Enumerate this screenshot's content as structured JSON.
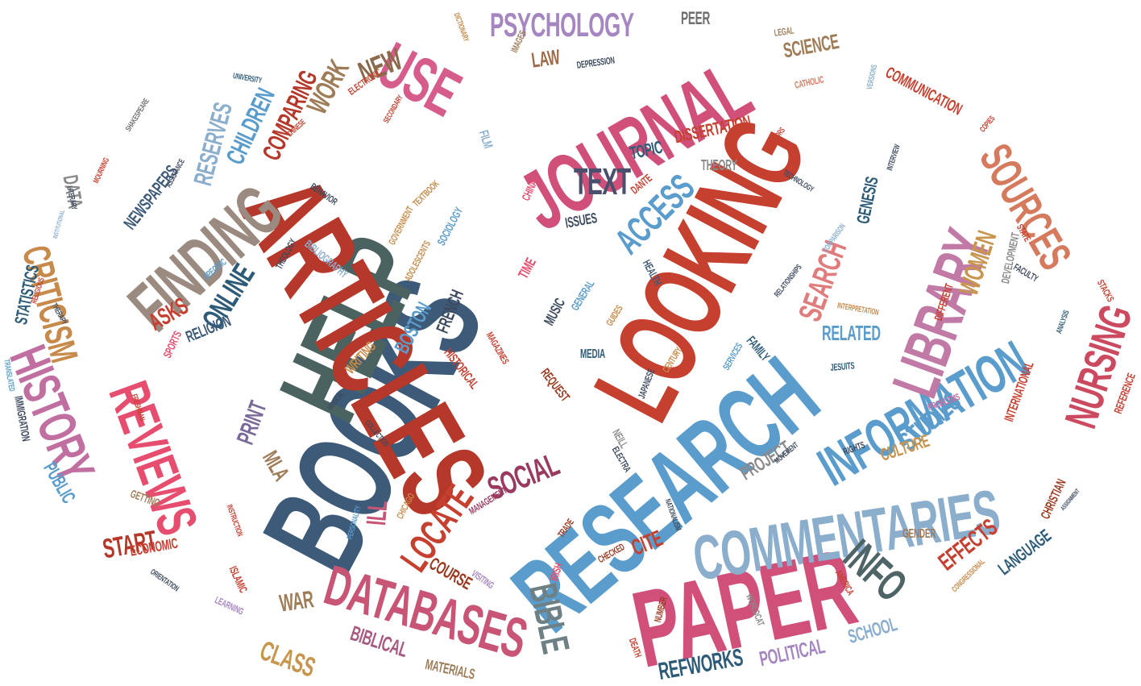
{
  "words": [
    {
      "text": "BOOKS",
      "color": "#3d5a78"
    },
    {
      "text": "HELP",
      "color": "#4a6260"
    },
    {
      "text": "ARTICLES",
      "color": "#b5382a"
    },
    {
      "text": "LOOKING",
      "color": "#c6402f"
    },
    {
      "text": "RESEARCH",
      "color": "#5a9ccc"
    },
    {
      "text": "JOURNAL",
      "color": "#d0507a"
    },
    {
      "text": "PAPER",
      "color": "#d0507a"
    },
    {
      "text": "COMMENTARIES",
      "color": "#8caecd"
    },
    {
      "text": "INFORMATION",
      "color": "#5a9ccc"
    },
    {
      "text": "LIBRARY",
      "color": "#c07aa5"
    },
    {
      "text": "FINDING",
      "color": "#9a8a80"
    },
    {
      "text": "DATABASES",
      "color": "#c95576"
    },
    {
      "text": "REVIEWS",
      "color": "#e64d6e"
    },
    {
      "text": "HISTORY",
      "color": "#c06fa0"
    },
    {
      "text": "USE",
      "color": "#d65c8c"
    },
    {
      "text": "SOURCES",
      "color": "#d67a5e"
    },
    {
      "text": "NURSING",
      "color": "#cc4a60"
    },
    {
      "text": "CRITICISM",
      "color": "#c78a4a"
    },
    {
      "text": "BIBLE",
      "color": "#6e8084"
    },
    {
      "text": "INFO",
      "color": "#4f6466"
    },
    {
      "text": "PSYCHOLOGY",
      "color": "#a586c0"
    },
    {
      "text": "TEXT",
      "color": "#4a4f6e"
    },
    {
      "text": "ACCESS",
      "color": "#5a9ccc"
    },
    {
      "text": "LOCATE",
      "color": "#c64030"
    },
    {
      "text": "SOCIAL",
      "color": "#9a3a60"
    },
    {
      "text": "SEARCH",
      "color": "#e07c7c"
    },
    {
      "text": "WOMEN",
      "color": "#c7954e"
    },
    {
      "text": "STUDIES",
      "color": "#5a9ccc"
    },
    {
      "text": "ONLINE",
      "color": "#2d5b78"
    },
    {
      "text": "NEW",
      "color": "#8a6a4a"
    },
    {
      "text": "WORK",
      "color": "#9e7c58"
    },
    {
      "text": "CHILDREN",
      "color": "#5a9ccc"
    },
    {
      "text": "RESERVES",
      "color": "#8caecd"
    },
    {
      "text": "COMPARING",
      "color": "#b5382a"
    },
    {
      "text": "NEWSPAPERS",
      "color": "#3d5a78"
    },
    {
      "text": "DATA",
      "color": "#8a8a8a"
    },
    {
      "text": "STATISTICS",
      "color": "#2d5b78"
    },
    {
      "text": "ASKS",
      "color": "#c64030"
    },
    {
      "text": "PRINT",
      "color": "#7a6a9a"
    },
    {
      "text": "MLA",
      "color": "#9e7c58"
    },
    {
      "text": "ILL",
      "color": "#c95576"
    },
    {
      "text": "START",
      "color": "#b5382a"
    },
    {
      "text": "WAR",
      "color": "#9e7c58"
    },
    {
      "text": "CLASS",
      "color": "#c7954e"
    },
    {
      "text": "BIBLICAL",
      "color": "#a85a80"
    },
    {
      "text": "MATERIALS",
      "color": "#9e7c58"
    },
    {
      "text": "REFWORKS",
      "color": "#2d5b78"
    },
    {
      "text": "POLITICAL",
      "color": "#a586c0"
    },
    {
      "text": "SCHOOL",
      "color": "#8caecd"
    },
    {
      "text": "EFFECTS",
      "color": "#c64030"
    },
    {
      "text": "LANGUAGE",
      "color": "#2d5b78"
    },
    {
      "text": "CULTURE",
      "color": "#c7954e"
    },
    {
      "text": "PROJECT",
      "color": "#8a8a8a"
    },
    {
      "text": "CITE",
      "color": "#c64030"
    },
    {
      "text": "COURSE",
      "color": "#9a3a20"
    },
    {
      "text": "RELATED",
      "color": "#5a9ccc"
    },
    {
      "text": "SCIENCE",
      "color": "#9e7c58"
    },
    {
      "text": "LAW",
      "color": "#9e6a4a"
    },
    {
      "text": "PEER",
      "color": "#6e6e6e"
    },
    {
      "text": "COMMUNICATION",
      "color": "#c64030"
    },
    {
      "text": "DISSERTATION",
      "color": "#c64030"
    },
    {
      "text": "TOPIC",
      "color": "#2d5b78"
    },
    {
      "text": "PUBLIC",
      "color": "#5a9ccc"
    },
    {
      "text": "IMMIGRATION",
      "color": "#3d4a5e"
    },
    {
      "text": "ECONOMIC",
      "color": "#c64030"
    },
    {
      "text": "RELIGION",
      "color": "#3d5a78"
    },
    {
      "text": "BOSTON",
      "color": "#5a9ccc"
    },
    {
      "text": "FRENCH",
      "color": "#3d4a5e"
    },
    {
      "text": "HISTORICAL",
      "color": "#c64030"
    },
    {
      "text": "REQUEST",
      "color": "#9a3a20"
    },
    {
      "text": "WRITING",
      "color": "#c78a4a"
    },
    {
      "text": "MEDIA",
      "color": "#2d5b78"
    },
    {
      "text": "MUSIC",
      "color": "#3d4a5e"
    },
    {
      "text": "GENERAL",
      "color": "#5a9ccc"
    },
    {
      "text": "HEALTH",
      "color": "#3d5a78"
    },
    {
      "text": "ISSUES",
      "color": "#3d4a5e"
    },
    {
      "text": "GENESIS",
      "color": "#2d5b78"
    },
    {
      "text": "THEORY",
      "color": "#8a8a8a"
    },
    {
      "text": "FILM",
      "color": "#8caecd"
    },
    {
      "text": "IMAGES",
      "color": "#9e7c58"
    },
    {
      "text": "DEPRESSION",
      "color": "#3d4a5e"
    },
    {
      "text": "LEGAL",
      "color": "#9e7c58"
    },
    {
      "text": "CATHOLIC",
      "color": "#d67a5e"
    },
    {
      "text": "VERSIONS",
      "color": "#8caecd"
    },
    {
      "text": "COPIES",
      "color": "#c64030"
    },
    {
      "text": "DICTIONARY",
      "color": "#c78a4a"
    },
    {
      "text": "ELECTRONIC",
      "color": "#c64030"
    },
    {
      "text": "UNIVERSITY",
      "color": "#2d5b78"
    },
    {
      "text": "SHAKESPEARE",
      "color": "#6e6e6e"
    },
    {
      "text": "MOURNING",
      "color": "#c64030"
    },
    {
      "text": "ASSISTANCE",
      "color": "#3d4a5e"
    },
    {
      "text": "CHINESE",
      "color": "#c64030"
    },
    {
      "text": "SECONDARY",
      "color": "#c64030"
    },
    {
      "text": "BEHAVIOR",
      "color": "#3d4a5e"
    },
    {
      "text": "GOVERNMENT",
      "color": "#c78a4a"
    },
    {
      "text": "TEXTBOOK",
      "color": "#c78a4a"
    },
    {
      "text": "ADOLESCENTS",
      "color": "#c78a4a"
    },
    {
      "text": "SOCIOLOGY",
      "color": "#5a9ccc"
    },
    {
      "text": "CHINA",
      "color": "#e64d6e"
    },
    {
      "text": "DANTE",
      "color": "#c64030"
    },
    {
      "text": "TIME",
      "color": "#e64d6e"
    },
    {
      "text": "MAGAZINES",
      "color": "#c64030"
    },
    {
      "text": "GUIDES",
      "color": "#c78a4a"
    },
    {
      "text": "JAPANESE",
      "color": "#3d4a5e"
    },
    {
      "text": "CENTURY",
      "color": "#c78a4a"
    },
    {
      "text": "FAMILY",
      "color": "#2d5b78"
    },
    {
      "text": "SERVICES",
      "color": "#5a9ccc"
    },
    {
      "text": "JESUITS",
      "color": "#2d5b78"
    },
    {
      "text": "INTERNATIONAL",
      "color": "#c64030"
    },
    {
      "text": "ANALYSIS",
      "color": "#2d5b78"
    },
    {
      "text": "REFERENCE",
      "color": "#c64030"
    },
    {
      "text": "STACKS",
      "color": "#c64030"
    },
    {
      "text": "FACULTY",
      "color": "#3d4a5e"
    },
    {
      "text": "STATE",
      "color": "#c64030"
    },
    {
      "text": "DEVELOPMENT",
      "color": "#8a8a8a"
    },
    {
      "text": "DIFFERENT",
      "color": "#c64030"
    },
    {
      "text": "INTERPRETATION",
      "color": "#c78a4a"
    },
    {
      "text": "RELATIONSHIPS",
      "color": "#3d4a5e"
    },
    {
      "text": "COMPARISON",
      "color": "#8caecd"
    },
    {
      "text": "TECHNOLOGY",
      "color": "#3d4a5e"
    },
    {
      "text": "INTERVIEW",
      "color": "#3d4a5e"
    },
    {
      "text": "AUTHORS",
      "color": "#c64030"
    },
    {
      "text": "THEOLOGY",
      "color": "#3d4a5e"
    },
    {
      "text": "BIBLIOGRAPHY",
      "color": "#8caecd"
    },
    {
      "text": "SPECIFIC",
      "color": "#5a9ccc"
    },
    {
      "text": "RELIGIOUS",
      "color": "#c64030"
    },
    {
      "text": "THERAPY",
      "color": "#3d4a5e"
    },
    {
      "text": "SPORTS",
      "color": "#e64d6e"
    },
    {
      "text": "INSTITUTIONAL",
      "color": "#8caecd"
    },
    {
      "text": "LITERARY",
      "color": "#3d4a5e"
    },
    {
      "text": "TRANSLATED",
      "color": "#5a9ccc"
    },
    {
      "text": "FRESHMAN",
      "color": "#c64030"
    },
    {
      "text": "MEDICAL",
      "color": "#3d4a5e"
    },
    {
      "text": "COLLECTION",
      "color": "#3d4a5e"
    },
    {
      "text": "GETTING",
      "color": "#9e7c58"
    },
    {
      "text": "INSTRUCTION",
      "color": "#c64030"
    },
    {
      "text": "PERSONALITY",
      "color": "#5a9ccc"
    },
    {
      "text": "ORIENTATION",
      "color": "#3d4a5e"
    },
    {
      "text": "LEARNING",
      "color": "#a586c0"
    },
    {
      "text": "ISLAMIC",
      "color": "#c64030"
    },
    {
      "text": "VISITING",
      "color": "#a586c0"
    },
    {
      "text": "CHICAGO",
      "color": "#c78a4a"
    },
    {
      "text": "MANAGEMENT",
      "color": "#9a3a60"
    },
    {
      "text": "TRADE",
      "color": "#9a3a20"
    },
    {
      "text": "IRISH",
      "color": "#e64d6e"
    },
    {
      "text": "CHECKED",
      "color": "#9a3a20"
    },
    {
      "text": "NUMBER",
      "color": "#9a3a20"
    },
    {
      "text": "DEATH",
      "color": "#c64030"
    },
    {
      "text": "NEILL",
      "color": "#8a8a8a"
    },
    {
      "text": "ELECTRA",
      "color": "#3d4a5e"
    },
    {
      "text": "NATIONALISM",
      "color": "#3d4a5e"
    },
    {
      "text": "WORLDCAT",
      "color": "#8a8a8a"
    },
    {
      "text": "AMERICA",
      "color": "#c64030"
    },
    {
      "text": "CONGRESSIONAL",
      "color": "#c78a4a"
    },
    {
      "text": "GENDER",
      "color": "#9e7c58"
    },
    {
      "text": "MOVEMENT",
      "color": "#3d4a5e"
    },
    {
      "text": "RIGHTS",
      "color": "#3d4a5e"
    },
    {
      "text": "PROBLEMS",
      "color": "#c06fa0"
    },
    {
      "text": "CHRISTIAN",
      "color": "#9a3a20"
    },
    {
      "text": "ASSIGNMENT",
      "color": "#3d4a5e"
    }
  ]
}
